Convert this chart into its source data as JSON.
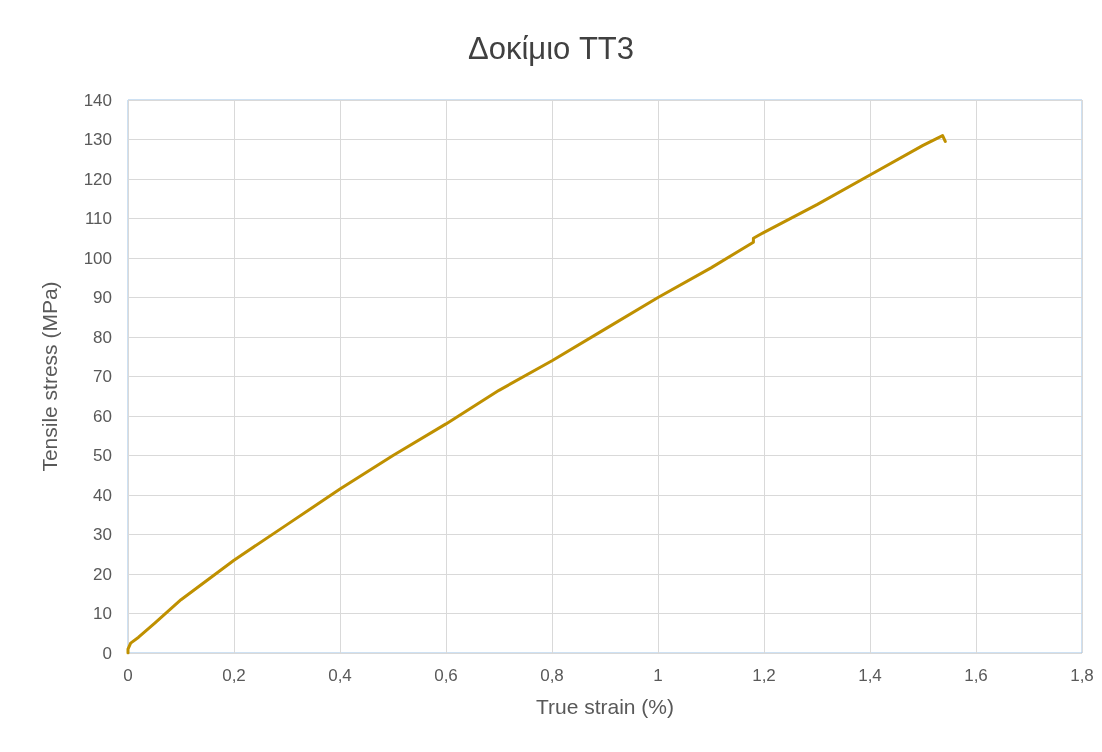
{
  "chart_data": {
    "type": "line",
    "title": "Δοκίμιο TT3",
    "xlabel": "True strain (%)",
    "ylabel": "Tensile stress (MPa)",
    "xlim": [
      0,
      1.8
    ],
    "xticks": [
      0,
      {
        "value": 0.2,
        "label": "0,2"
      },
      {
        "value": 0.4,
        "label": "0,4"
      },
      {
        "value": 0.6,
        "label": "0,6"
      },
      {
        "value": 0.8,
        "label": "0,8"
      },
      1,
      {
        "value": 1.2,
        "label": "1,2"
      },
      {
        "value": 1.4,
        "label": "1,4"
      },
      {
        "value": 1.6,
        "label": "1,6"
      },
      {
        "value": 1.8,
        "label": "1,8"
      }
    ],
    "ylim": [
      0,
      140
    ],
    "yticks": [
      0,
      10,
      20,
      30,
      40,
      50,
      60,
      70,
      80,
      90,
      100,
      110,
      120,
      130,
      140
    ],
    "grid": true,
    "marker": "none",
    "line_style": "solid",
    "series": [
      {
        "color": "#bf9000",
        "x": [
          0,
          0,
          0.005,
          0.02,
          0.05,
          0.1,
          0.15,
          0.2,
          0.3,
          0.4,
          0.5,
          0.6,
          0.7,
          0.8,
          0.9,
          1.0,
          1.1,
          1.18,
          1.18,
          1.2,
          1.3,
          1.4,
          1.5,
          1.537,
          1.542
        ],
        "values": [
          0,
          1,
          2.5,
          4,
          7.5,
          13.5,
          18.5,
          23.5,
          32.5,
          41.5,
          50,
          58,
          66.5,
          74,
          82,
          90,
          97.5,
          104,
          105,
          106.5,
          113.5,
          121,
          128.5,
          131,
          129.5
        ]
      }
    ]
  }
}
